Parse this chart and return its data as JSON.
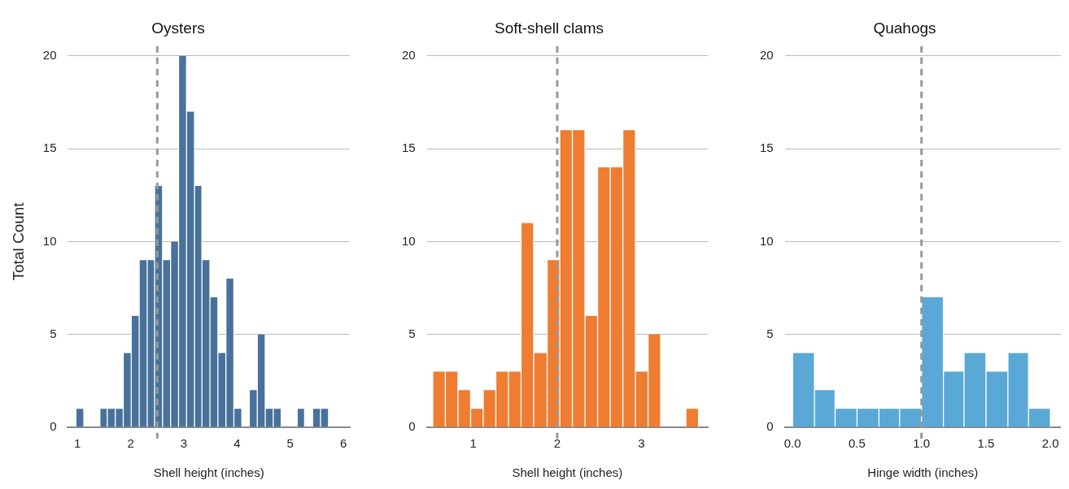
{
  "chart_data": [
    {
      "type": "histogram",
      "title": "Oysters",
      "xlabel": "Shell height (inches)",
      "ylabel": "Total Count",
      "color": "#48729c",
      "bins": [
        0.97,
        1.12,
        1.27,
        1.42,
        1.56,
        1.71,
        1.86,
        2.01,
        2.16,
        2.31,
        2.45,
        2.6,
        2.75,
        2.9,
        3.05,
        3.2,
        3.34,
        3.49,
        3.64,
        3.79,
        3.94,
        4.09,
        4.23,
        4.38,
        4.53,
        4.68,
        4.83,
        4.98,
        5.13,
        5.27,
        5.42,
        5.57,
        5.72
      ],
      "values": [
        1,
        0,
        0,
        1,
        1,
        1,
        4,
        6,
        9,
        9,
        13,
        9,
        10,
        20,
        17,
        13,
        9,
        7,
        4,
        8,
        1,
        0,
        2,
        5,
        1,
        1,
        0,
        0,
        1,
        0,
        1,
        1
      ],
      "xlim": [
        0.82,
        6.12
      ],
      "xticks": [
        1,
        2,
        3,
        4,
        5,
        6
      ],
      "ylim": [
        0,
        20
      ],
      "yticks": [
        0,
        5,
        10,
        15,
        20
      ],
      "grid": "y",
      "ref_lines": [
        {
          "axis": "x",
          "value": 2.5,
          "color": "#999999",
          "line_style": "dashed"
        }
      ]
    },
    {
      "type": "histogram",
      "title": "Soft-shell clams",
      "xlabel": "Shell height (inches)",
      "color": "#ee7d31",
      "bins": [
        0.52,
        0.67,
        0.82,
        0.97,
        1.12,
        1.27,
        1.42,
        1.57,
        1.72,
        1.88,
        2.03,
        2.18,
        2.33,
        2.48,
        2.63,
        2.78,
        2.93,
        3.08,
        3.23,
        3.38,
        3.53,
        3.68
      ],
      "values": [
        3,
        3,
        2,
        1,
        2,
        3,
        3,
        11,
        4,
        9,
        16,
        16,
        6,
        14,
        14,
        16,
        3,
        5,
        0,
        0,
        1
      ],
      "xlim": [
        0.45,
        3.79
      ],
      "xticks": [
        1,
        2,
        3
      ],
      "ylim": [
        0,
        20
      ],
      "yticks": [
        0,
        5,
        10,
        15,
        20
      ],
      "grid": "y",
      "ref_lines": [
        {
          "axis": "x",
          "value": 2,
          "color": "#999999",
          "line_style": "dashed"
        }
      ]
    },
    {
      "type": "histogram",
      "title": "Quahogs",
      "xlabel": "Hinge width (inches)",
      "color": "#5aa8d6",
      "bins": [
        0,
        0.17,
        0.33,
        0.5,
        0.67,
        0.83,
        1,
        1.17,
        1.33,
        1.5,
        1.67,
        1.83,
        2
      ],
      "values": [
        4,
        2,
        1,
        1,
        1,
        1,
        7,
        3,
        4,
        3,
        4,
        1
      ],
      "xlim": [
        -0.06,
        2.08
      ],
      "xticks": [
        {
          "value": 0,
          "label": "0.0"
        },
        {
          "value": 0.5,
          "label": "0.5"
        },
        {
          "value": 1,
          "label": "1.0"
        },
        {
          "value": 1.5,
          "label": "1.5"
        },
        {
          "value": 2,
          "label": "2.0"
        }
      ],
      "ylim": [
        0,
        20
      ],
      "yticks": [
        0,
        5,
        10,
        15,
        20
      ],
      "grid": "y",
      "ref_lines": [
        {
          "axis": "x",
          "value": 1,
          "color": "#999999",
          "line_style": "dashed"
        }
      ]
    }
  ]
}
